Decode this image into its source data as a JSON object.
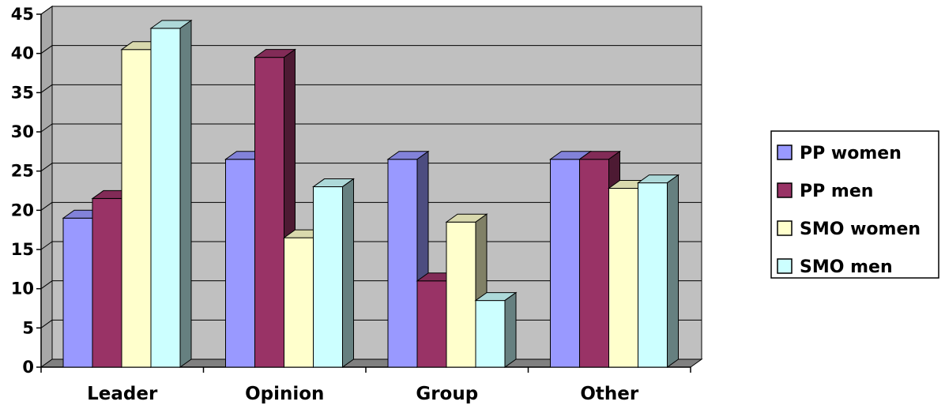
{
  "chart_data": {
    "type": "bar",
    "categories": [
      "Leader",
      "Opinion",
      "Group",
      "Other"
    ],
    "series": [
      {
        "name": "PP women",
        "color": "#9999FF",
        "values": [
          19,
          26.5,
          26.5,
          26.5
        ]
      },
      {
        "name": "PP men",
        "color": "#993366",
        "values": [
          21.5,
          39.5,
          11,
          26.5
        ]
      },
      {
        "name": "SMO women",
        "color": "#FFFFCC",
        "values": [
          40.5,
          16.5,
          18.5,
          22.8
        ]
      },
      {
        "name": "SMO men",
        "color": "#CCFFFF",
        "values": [
          43.2,
          23,
          8.5,
          23.5
        ]
      }
    ],
    "ylim": [
      0,
      45
    ],
    "yticks": [
      0,
      5,
      10,
      15,
      20,
      25,
      30,
      35,
      40,
      45
    ],
    "grid": true,
    "legend_position": "right",
    "style": "3d-clustered-column",
    "wall_color": "#C0C0C0",
    "floor_color": "#808080"
  }
}
